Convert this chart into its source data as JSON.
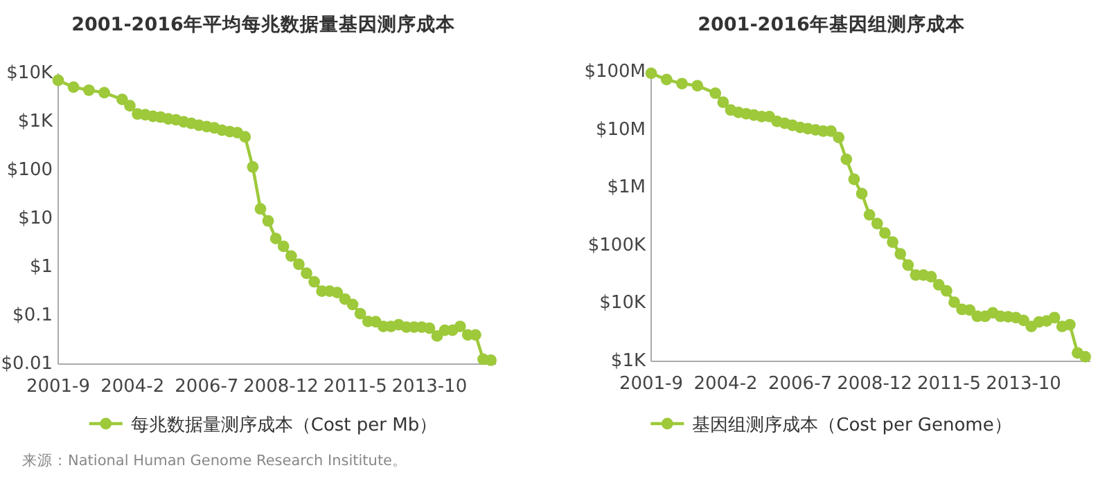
{
  "chart_data": [
    {
      "type": "line",
      "title": "2001-2016年平均每兆数据量基因测序成本",
      "log": "y",
      "marker": "circle",
      "line_style": "solid",
      "legend": "bottom",
      "grid": false,
      "x": [
        "2001-09",
        "2002-03",
        "2002-09",
        "2003-03",
        "2003-10",
        "2004-01",
        "2004-04",
        "2004-07",
        "2004-10",
        "2005-01",
        "2005-04",
        "2005-07",
        "2005-10",
        "2006-01",
        "2006-04",
        "2006-07",
        "2006-10",
        "2007-01",
        "2007-04",
        "2007-07",
        "2007-10",
        "2008-01",
        "2008-04",
        "2008-07",
        "2008-10",
        "2009-01",
        "2009-04",
        "2009-07",
        "2009-10",
        "2010-01",
        "2010-04",
        "2010-07",
        "2010-10",
        "2011-01",
        "2011-04",
        "2011-07",
        "2011-10",
        "2012-01",
        "2012-04",
        "2012-07",
        "2012-10",
        "2013-01",
        "2013-04",
        "2013-07",
        "2013-10",
        "2014-01",
        "2014-04",
        "2014-07",
        "2014-10",
        "2015-01",
        "2015-04",
        "2015-07",
        "2015-10"
      ],
      "xlim": [
        "2001-09",
        "2015-12"
      ],
      "xticks": [
        {
          "value": "2001-09",
          "label": "2001-9"
        },
        {
          "value": "2004-02",
          "label": "2004-2"
        },
        {
          "value": "2006-07",
          "label": "2006-7"
        },
        {
          "value": "2008-12",
          "label": "2008-12"
        },
        {
          "value": "2011-05",
          "label": "2011-5"
        },
        {
          "value": "2013-10",
          "label": "2013-10"
        }
      ],
      "ylim": [
        0.01,
        10000
      ],
      "yticks": [
        {
          "value": 0.01,
          "label": "$0.01"
        },
        {
          "value": 0.1,
          "label": "$0.1"
        },
        {
          "value": 1,
          "label": "$1"
        },
        {
          "value": 10,
          "label": "$10"
        },
        {
          "value": 100,
          "label": "$100"
        },
        {
          "value": 1000,
          "label": "$1K"
        },
        {
          "value": 10000,
          "label": "$10K"
        }
      ],
      "series": [
        {
          "name": "每兆数据量测序成本（Cost per Mb）",
          "color": "#9dc93a",
          "values": [
            7200,
            5200,
            4500,
            4000,
            2900,
            2150,
            1450,
            1400,
            1300,
            1250,
            1150,
            1100,
            1000,
            930,
            850,
            800,
            750,
            670,
            630,
            600,
            490,
            117,
            16,
            9,
            3.9,
            2.7,
            1.7,
            1.15,
            0.75,
            0.5,
            0.32,
            0.32,
            0.3,
            0.22,
            0.17,
            0.11,
            0.076,
            0.075,
            0.06,
            0.06,
            0.065,
            0.058,
            0.058,
            0.058,
            0.055,
            0.038,
            0.05,
            0.05,
            0.06,
            0.04,
            0.04,
            0.0126,
            0.012
          ]
        }
      ],
      "annotations": [
        "来源：National Human Genome Research Insititute。"
      ]
    },
    {
      "type": "line",
      "title": "2001-2016年基因组测序成本",
      "log": "y",
      "marker": "circle",
      "line_style": "solid",
      "legend": "bottom",
      "grid": false,
      "x": [
        "2001-09",
        "2002-03",
        "2002-09",
        "2003-03",
        "2003-10",
        "2004-01",
        "2004-04",
        "2004-07",
        "2004-10",
        "2005-01",
        "2005-04",
        "2005-07",
        "2005-10",
        "2006-01",
        "2006-04",
        "2006-07",
        "2006-10",
        "2007-01",
        "2007-04",
        "2007-07",
        "2007-10",
        "2008-01",
        "2008-04",
        "2008-07",
        "2008-10",
        "2009-01",
        "2009-04",
        "2009-07",
        "2009-10",
        "2010-01",
        "2010-04",
        "2010-07",
        "2010-10",
        "2011-01",
        "2011-04",
        "2011-07",
        "2011-10",
        "2012-01",
        "2012-04",
        "2012-07",
        "2012-10",
        "2013-01",
        "2013-04",
        "2013-07",
        "2013-10",
        "2014-01",
        "2014-04",
        "2014-07",
        "2014-10",
        "2015-01",
        "2015-04",
        "2015-07",
        "2015-10"
      ],
      "xlim": [
        "2001-09",
        "2015-12"
      ],
      "xticks": [
        {
          "value": "2001-09",
          "label": "2001-9"
        },
        {
          "value": "2004-02",
          "label": "2004-2"
        },
        {
          "value": "2006-07",
          "label": "2006-7"
        },
        {
          "value": "2008-12",
          "label": "2008-12"
        },
        {
          "value": "2011-05",
          "label": "2011-5"
        },
        {
          "value": "2013-10",
          "label": "2013-10"
        }
      ],
      "ylim": [
        1000,
        100000000
      ],
      "yticks": [
        {
          "value": 1000,
          "label": "$1K"
        },
        {
          "value": 10000,
          "label": "$10K"
        },
        {
          "value": 100000,
          "label": "$100K"
        },
        {
          "value": 1000000,
          "label": "$1M"
        },
        {
          "value": 10000000,
          "label": "$10M"
        },
        {
          "value": 100000000,
          "label": "$100M"
        }
      ],
      "series": [
        {
          "name": "基因组测序成本（Cost per Genome）",
          "color": "#9dc93a",
          "values": [
            95000000,
            74000000,
            63000000,
            58000000,
            43000000,
            30000000,
            22000000,
            20000000,
            19000000,
            18000000,
            17000000,
            17000000,
            14000000,
            13000000,
            12000000,
            11000000,
            10500000,
            10000000,
            9500000,
            9500000,
            7400000,
            3100000,
            1400000,
            790000,
            340000,
            240000,
            165000,
            115000,
            72000,
            46000,
            31000,
            31000,
            29000,
            21000,
            16500,
            10500,
            7900,
            7700,
            6000,
            6000,
            6900,
            6000,
            5900,
            5700,
            5100,
            4000,
            4800,
            5000,
            5700,
            4000,
            4300,
            1400,
            1200
          ]
        }
      ]
    }
  ]
}
